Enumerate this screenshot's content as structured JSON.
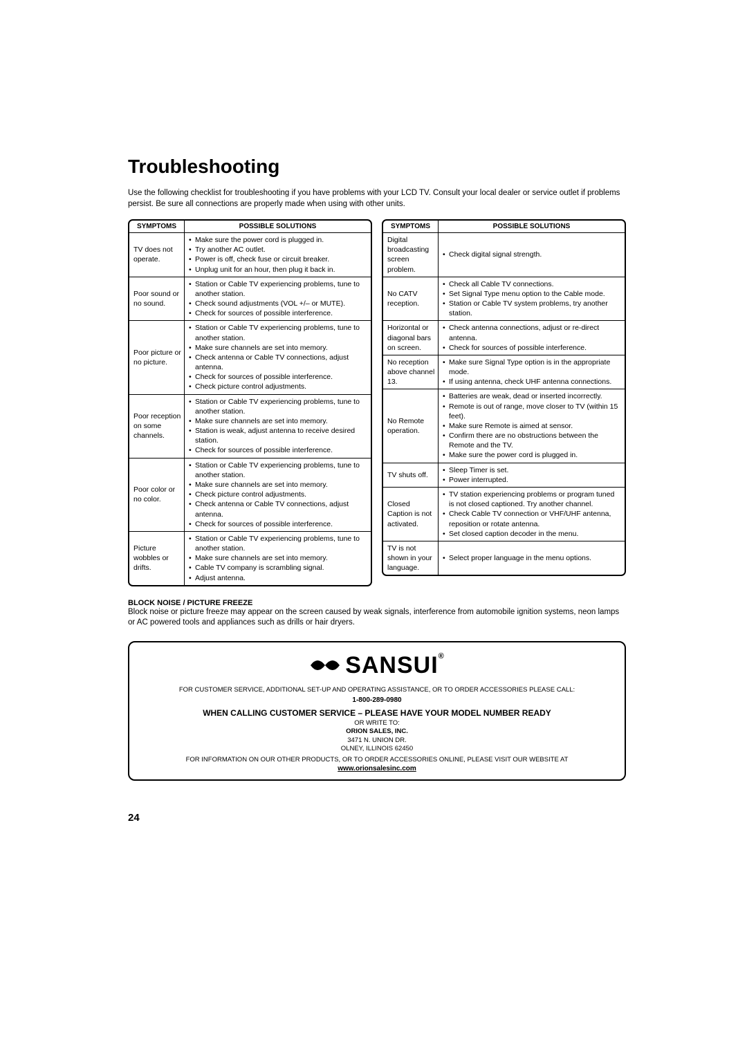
{
  "title": "Troubleshooting",
  "intro": "Use the following checklist for troubleshooting if you have problems with your LCD TV. Consult your local dealer or service outlet if problems persist. Be sure all connections are properly made when using with other units.",
  "header_symptoms": "SYMPTOMS",
  "header_solutions": "POSSIBLE SOLUTIONS",
  "left_table": [
    {
      "symptom": "TV does not operate.",
      "solutions": [
        "Make sure the power cord is plugged in.",
        "Try another AC outlet.",
        "Power is off, check fuse or circuit breaker.",
        "Unplug unit for an hour, then plug it back in."
      ]
    },
    {
      "symptom": "Poor sound or no sound.",
      "solutions": [
        "Station or Cable TV experiencing problems, tune to another station.",
        "Check sound adjustments (VOL +/– or MUTE).",
        "Check for sources of possible interference."
      ]
    },
    {
      "symptom": "Poor picture or no picture.",
      "solutions": [
        "Station or Cable TV experiencing problems, tune to another station.",
        "Make sure channels are set into memory.",
        "Check antenna or Cable TV connections, adjust antenna.",
        "Check for sources of possible interference.",
        "Check picture control adjustments."
      ]
    },
    {
      "symptom": "Poor reception on some channels.",
      "solutions": [
        "Station or Cable TV experiencing problems, tune to another station.",
        "Make sure channels are set into memory.",
        "Station is weak, adjust antenna to receive desired station.",
        "Check for sources of possible interference."
      ]
    },
    {
      "symptom": "Poor color or no color.",
      "solutions": [
        "Station or Cable TV experiencing problems, tune to another station.",
        "Make sure channels are set into memory.",
        "Check picture control adjustments.",
        "Check antenna or Cable TV connections, adjust antenna.",
        "Check for sources of possible interference."
      ]
    },
    {
      "symptom": "Picture wobbles or drifts.",
      "solutions": [
        "Station or Cable TV experiencing problems, tune to another station.",
        "Make sure channels are set into memory.",
        "Cable TV company is scrambling signal.",
        "Adjust antenna."
      ]
    }
  ],
  "right_table": [
    {
      "symptom": "Digital broadcasting screen problem.",
      "solutions": [
        "Check digital signal strength."
      ]
    },
    {
      "symptom": "No CATV reception.",
      "solutions": [
        "Check all Cable TV connections.",
        "Set Signal Type menu option to the Cable mode.",
        "Station or Cable TV system problems, try another station."
      ]
    },
    {
      "symptom": "Horizontal or diagonal bars on screen.",
      "solutions": [
        "Check antenna connections, adjust or re-direct antenna.",
        "Check for sources of possible interference."
      ]
    },
    {
      "symptom": "No reception above channel 13.",
      "solutions": [
        "Make sure Signal Type option is in the appropriate mode.",
        "If using antenna, check UHF antenna connections."
      ]
    },
    {
      "symptom": "No Remote operation.",
      "solutions": [
        "Batteries are weak, dead or inserted incorrectly.",
        "Remote is out of range, move closer to TV (within 15 feet).",
        "Make sure Remote is aimed at sensor.",
        "Confirm there are no obstructions between the Remote and the TV.",
        "Make sure the power cord is plugged in."
      ]
    },
    {
      "symptom": "TV shuts off.",
      "solutions": [
        "Sleep Timer is set.",
        "Power interrupted."
      ]
    },
    {
      "symptom": "Closed Caption is not activated.",
      "solutions": [
        "TV station experiencing problems or program tuned is not closed captioned. Try another channel.",
        "Check Cable TV connection or VHF/UHF antenna, reposition or rotate antenna.",
        "Set closed caption decoder in the menu."
      ]
    },
    {
      "symptom": "TV is not shown in your language.",
      "solutions": [
        "Select proper language in the menu options."
      ]
    }
  ],
  "block_noise": {
    "title": "BLOCK NOISE / PICTURE FREEZE",
    "text": "Block noise or picture freeze may appear on the screen caused by weak signals, interference from automobile ignition systems, neon lamps or AC powered tools and appliances such as drills or hair dryers."
  },
  "support": {
    "logo_text": "SANSUI",
    "line1": "FOR CUSTOMER SERVICE, ADDITIONAL SET-UP AND OPERATING ASSISTANCE, OR TO ORDER ACCESSORIES PLEASE CALL:",
    "phone": "1-800-289-0980",
    "model_ready": "WHEN CALLING CUSTOMER SERVICE – PLEASE HAVE YOUR MODEL NUMBER READY",
    "write_to": "OR WRITE TO:",
    "company": "ORION SALES, INC.",
    "address1": "3471 N. UNION DR.",
    "address2": "OLNEY, ILLINOIS 62450",
    "line2": "FOR INFORMATION ON OUR OTHER PRODUCTS, OR TO ORDER ACCESSORIES ONLINE, PLEASE VISIT OUR WEBSITE AT",
    "url": "www.orionsalesinc.com"
  },
  "page_number": "24"
}
